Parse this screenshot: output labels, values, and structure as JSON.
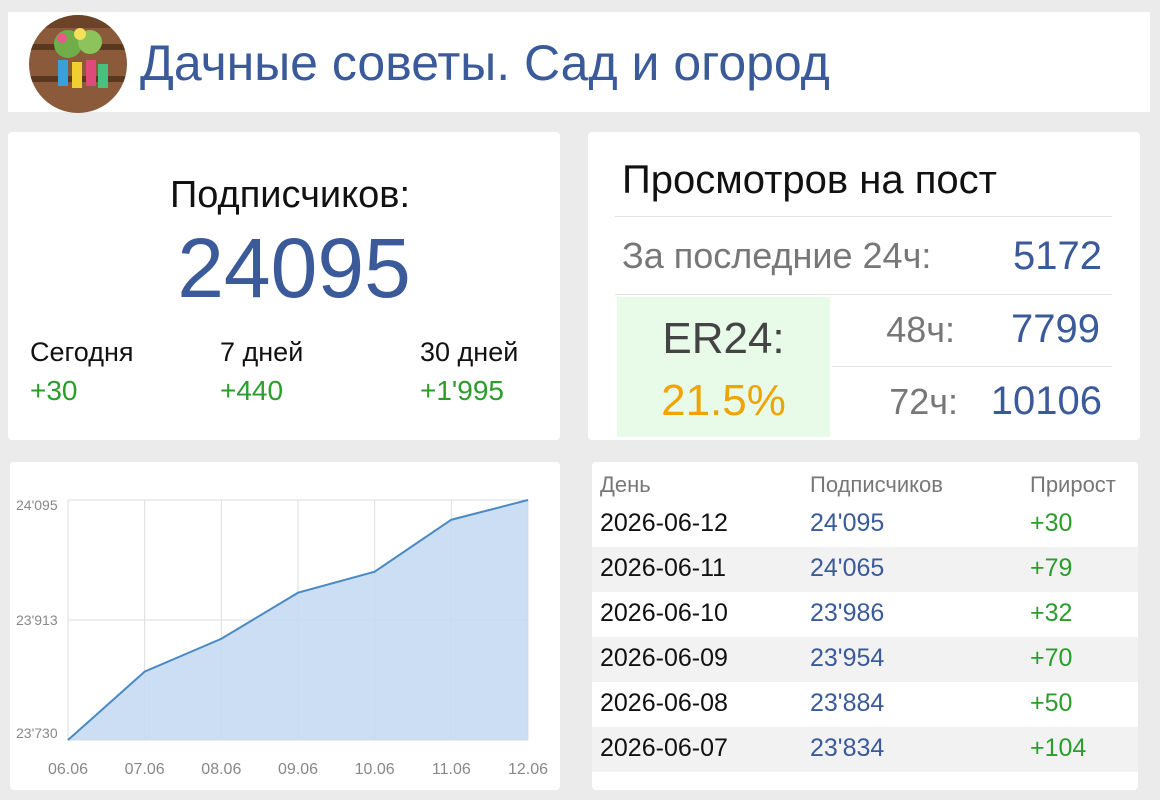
{
  "header": {
    "title": "Дачные советы. Сад и огород"
  },
  "subscribers": {
    "label": "Подписчиков:",
    "total": 24095,
    "stats": [
      {
        "label": "Сегодня",
        "value": "+30"
      },
      {
        "label": "7 дней",
        "value": "+440"
      },
      {
        "label": "30 дней",
        "value": "+1'995"
      }
    ]
  },
  "views": {
    "title": "Просмотров на пост",
    "rows": [
      {
        "label": "За последние 24ч:",
        "value": 5172
      },
      {
        "label": "48ч:",
        "value": 7799
      },
      {
        "label": "72ч:",
        "value": 10106
      }
    ],
    "er": {
      "label": "ER24:",
      "value": "21.5%"
    }
  },
  "chart_data": {
    "type": "area",
    "categories": [
      "06.06",
      "07.06",
      "08.06",
      "09.06",
      "10.06",
      "11.06",
      "12.06"
    ],
    "values": [
      23730,
      23834,
      23884,
      23954,
      23986,
      24065,
      24095
    ],
    "ylim": [
      23730,
      24095
    ],
    "yticks": [
      {
        "value": 23730,
        "label": "23'730"
      },
      {
        "value": 23912.5,
        "label": "23'913"
      },
      {
        "value": 24095,
        "label": "24'095"
      }
    ],
    "color": "#4a8ac4",
    "fill": "#c5daf2",
    "grid": true
  },
  "table": {
    "columns": [
      "День",
      "Подписчиков",
      "Прирост"
    ],
    "rows": [
      [
        "2026-06-12",
        "24'095",
        "+30"
      ],
      [
        "2026-06-11",
        "24'065",
        "+79"
      ],
      [
        "2026-06-10",
        "23'986",
        "+32"
      ],
      [
        "2026-06-09",
        "23'954",
        "+70"
      ],
      [
        "2026-06-08",
        "23'884",
        "+50"
      ],
      [
        "2026-06-07",
        "23'834",
        "+104"
      ]
    ]
  }
}
